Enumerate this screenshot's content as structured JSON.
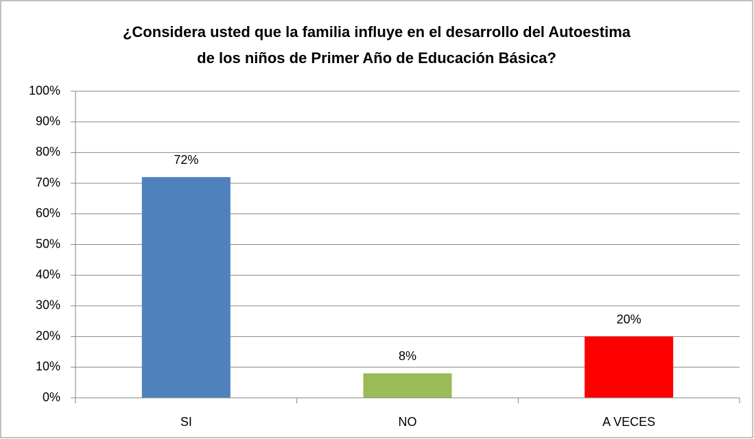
{
  "chart_data": {
    "type": "bar",
    "title": [
      "¿Considera usted que la familia influye en el desarrollo del Autoestima",
      "de los niños de Primer Año de Educación Básica?"
    ],
    "categories": [
      "SI",
      "NO",
      "A VECES"
    ],
    "values": [
      72,
      8,
      20
    ],
    "value_labels": [
      "72%",
      "8%",
      "20%"
    ],
    "colors": [
      "#4f81bd",
      "#9bbb59",
      "#ff0000"
    ],
    "ylim": [
      0,
      100
    ],
    "yticks": [
      {
        "value": 0,
        "label": "0%"
      },
      {
        "value": 10,
        "label": "10%"
      },
      {
        "value": 20,
        "label": "20%"
      },
      {
        "value": 30,
        "label": "30%"
      },
      {
        "value": 40,
        "label": "40%"
      },
      {
        "value": 50,
        "label": "50%"
      },
      {
        "value": 60,
        "label": "60%"
      },
      {
        "value": 70,
        "label": "70%"
      },
      {
        "value": 80,
        "label": "80%"
      },
      {
        "value": 90,
        "label": "90%"
      },
      {
        "value": 100,
        "label": "100%"
      }
    ],
    "grid": true
  }
}
